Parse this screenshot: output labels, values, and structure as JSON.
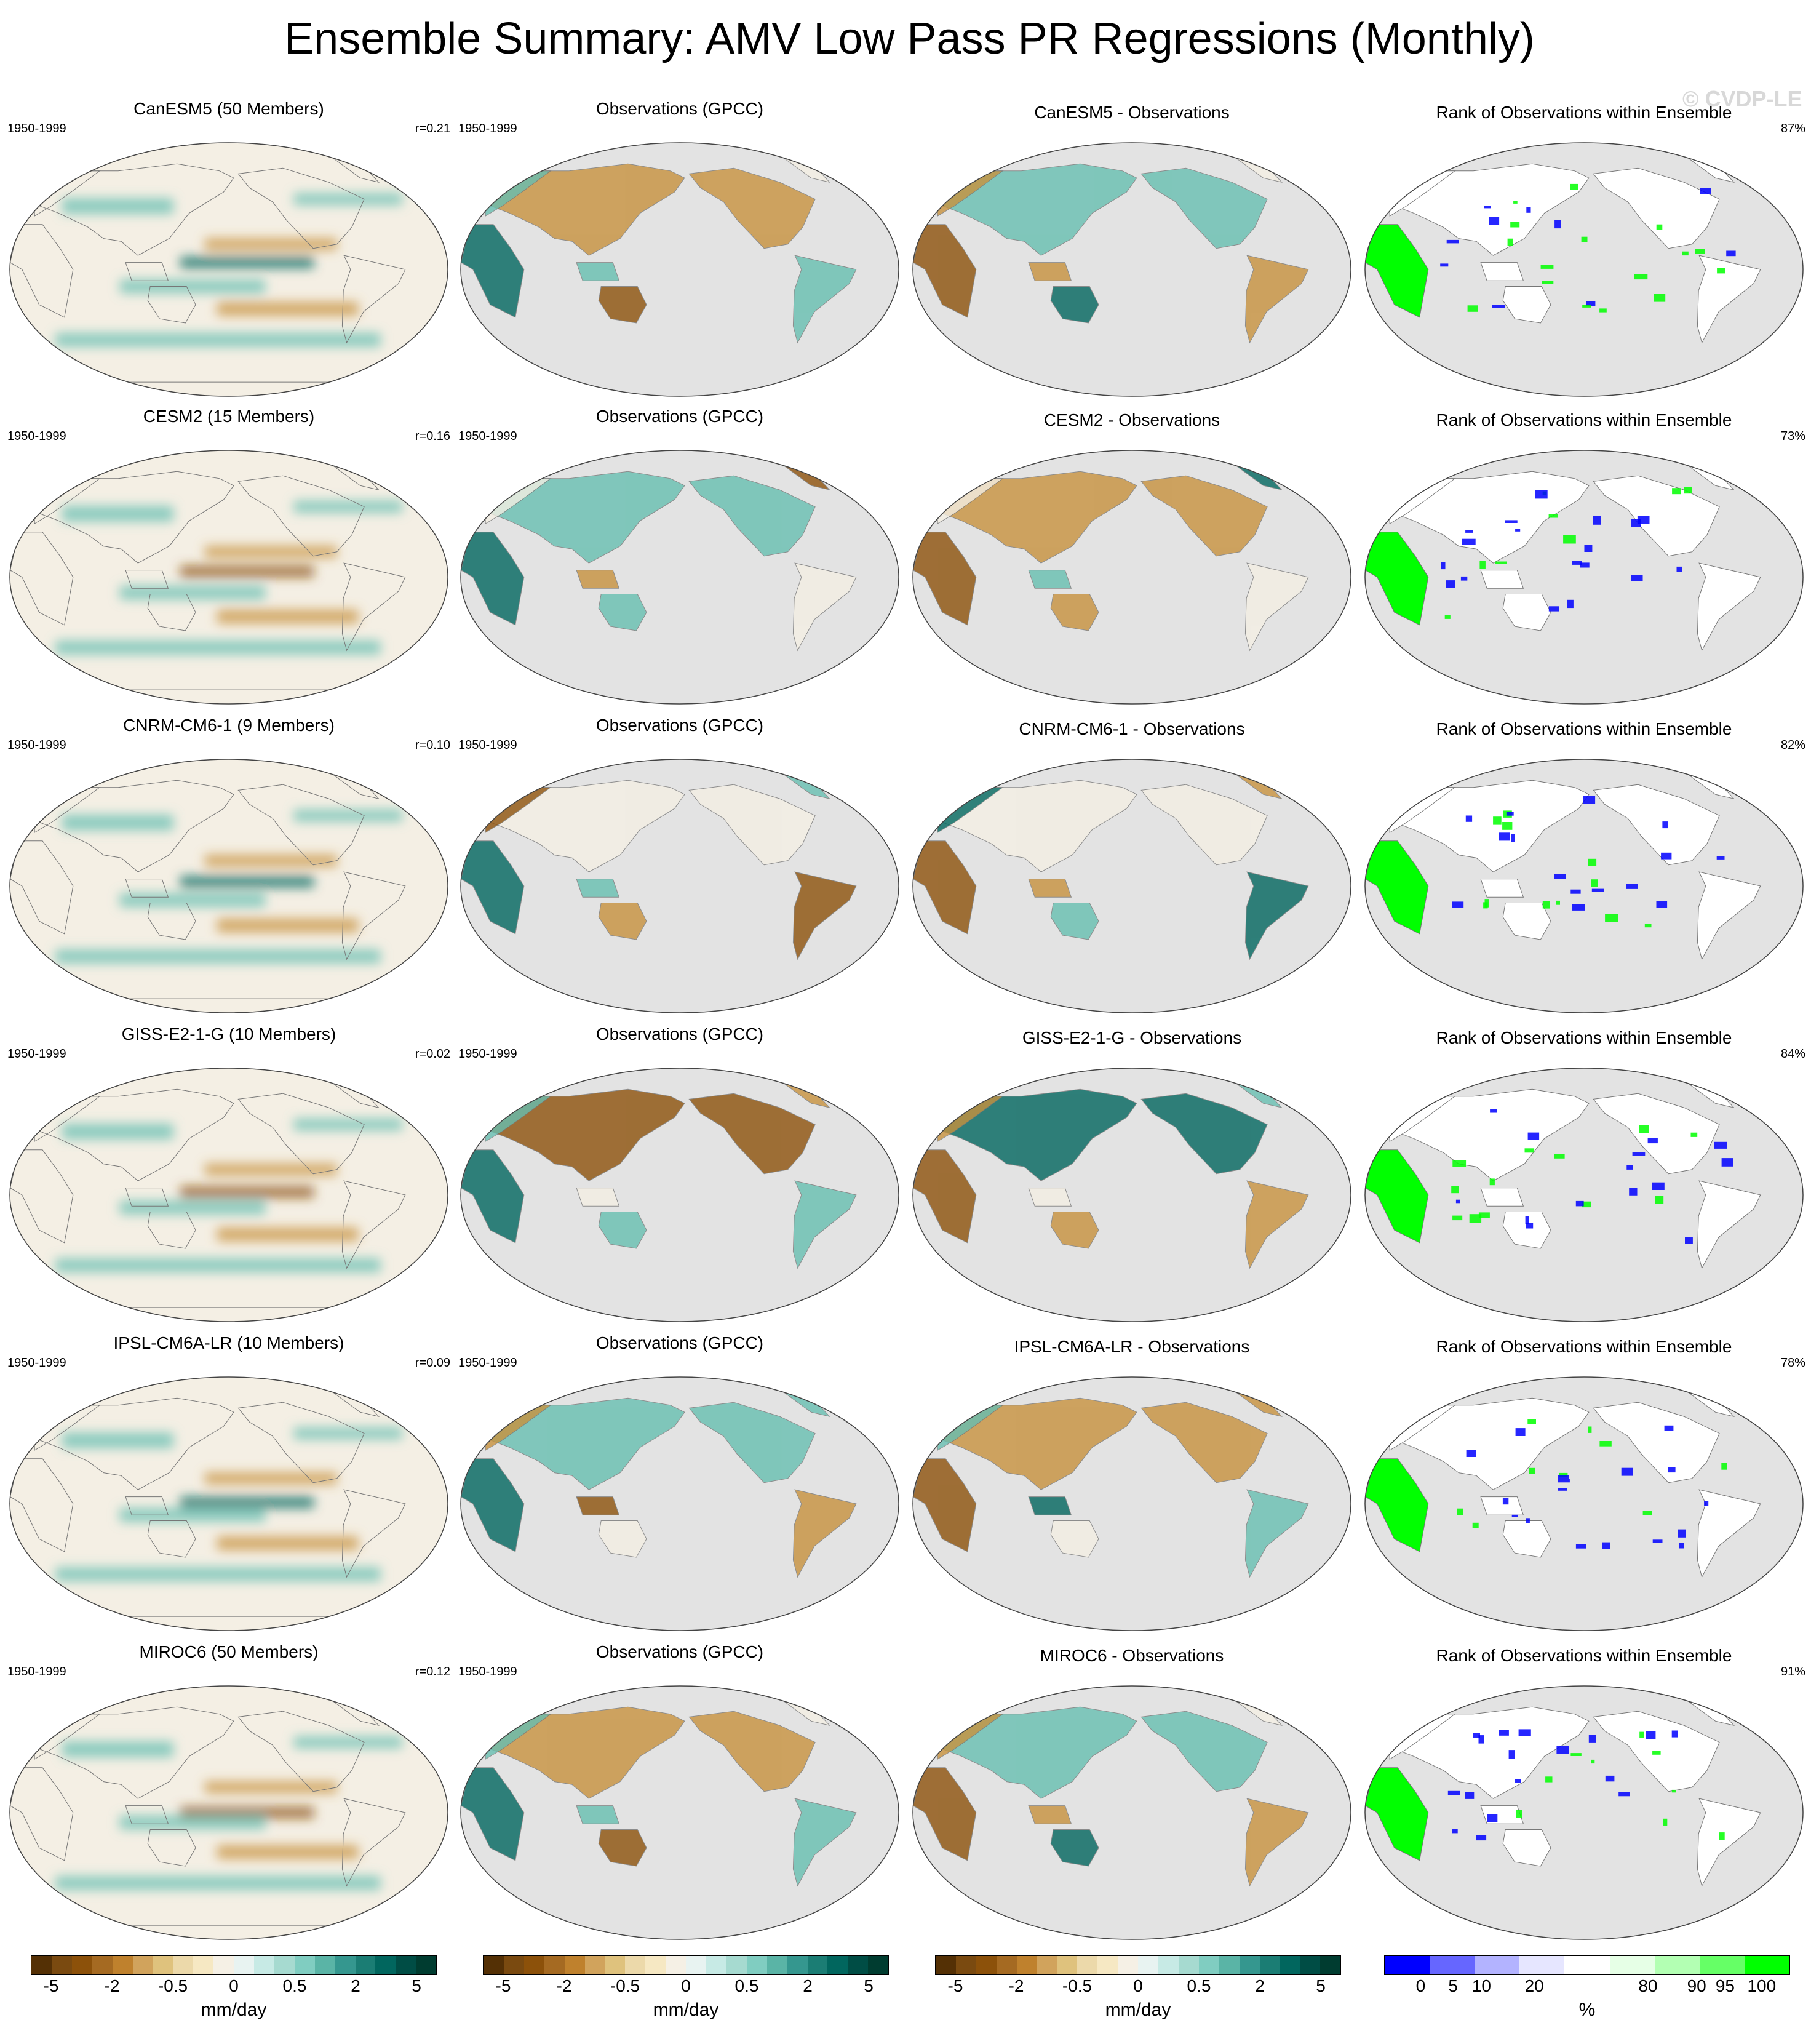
{
  "title": "Ensemble Summary: AMV Low Pass PR Regressions (Monthly)",
  "watermark": "© CVDP-LE",
  "period": "1950-1999",
  "rank_title": "Rank of Observations within Ensemble",
  "colors": {
    "land": "#ffffff",
    "ocean": "#e3e3e3",
    "brown_strong": "#8c510a",
    "brown": "#c7913e",
    "neutral": "#f4efe4",
    "teal": "#67bfb1",
    "teal_strong": "#01665e",
    "rank_low": "#0000ff",
    "rank_high": "#00ff00"
  },
  "rows": [
    {
      "model": "CanESM5 (50 Members)",
      "correlation": "r=0.21",
      "obs": "Observations (GPCC)",
      "diff": "CanESM5 - Observations",
      "rank_pct": "87%"
    },
    {
      "model": "CESM2 (15 Members)",
      "correlation": "r=0.16",
      "obs": "Observations (GPCC)",
      "diff": "CESM2 - Observations",
      "rank_pct": "73%"
    },
    {
      "model": "CNRM-CM6-1 (9 Members)",
      "correlation": "r=0.10",
      "obs": "Observations (GPCC)",
      "diff": "CNRM-CM6-1 - Observations",
      "rank_pct": "82%"
    },
    {
      "model": "GISS-E2-1-G (10 Members)",
      "correlation": "r=0.02",
      "obs": "Observations (GPCC)",
      "diff": "GISS-E2-1-G - Observations",
      "rank_pct": "84%"
    },
    {
      "model": "IPSL-CM6A-LR (10 Members)",
      "correlation": "r=0.09",
      "obs": "Observations (GPCC)",
      "diff": "IPSL-CM6A-LR - Observations",
      "rank_pct": "78%"
    },
    {
      "model": "MIROC6 (50 Members)",
      "correlation": "r=0.12",
      "obs": "Observations (GPCC)",
      "diff": "MIROC6 - Observations",
      "rank_pct": "91%"
    }
  ],
  "colorbars": {
    "pr": {
      "unit": "mm/day",
      "labels": [
        "-5",
        "-2",
        "-0.5",
        "0",
        "0.5",
        "2",
        "5"
      ],
      "colors": [
        "#543005",
        "#7a4a10",
        "#8c510a",
        "#a56a22",
        "#bf812d",
        "#d1a35c",
        "#dfc27d",
        "#ecd9aa",
        "#f6e8c3",
        "#f5f0e5",
        "#e8f3f1",
        "#c7eae5",
        "#a6dad0",
        "#80cdc1",
        "#5ab4a6",
        "#35978f",
        "#1b7d74",
        "#01665e",
        "#004d45",
        "#003c30"
      ]
    },
    "rank": {
      "unit": "%",
      "labels": [
        "0",
        "5",
        "10",
        "20",
        "80",
        "90",
        "95",
        "100"
      ],
      "colors": [
        "#0000ff",
        "#6666ff",
        "#b3b3ff",
        "#e6e6ff",
        "#ffffff",
        "#e6ffe6",
        "#b3ffb3",
        "#66ff66",
        "#00ff00"
      ]
    }
  }
}
